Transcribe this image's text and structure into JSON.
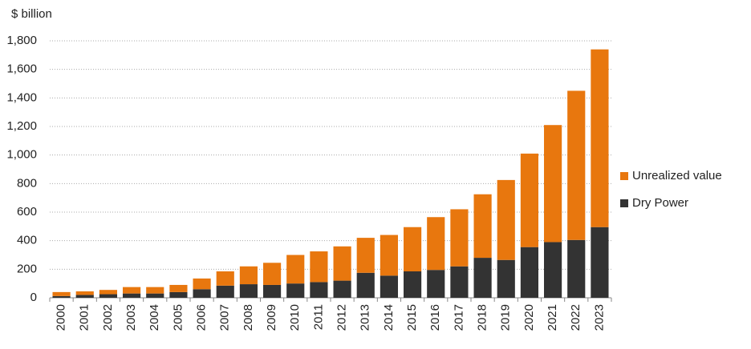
{
  "chart_data": {
    "type": "stacked-bar",
    "y_label": "$ billion",
    "categories": [
      "2000",
      "2001",
      "2002",
      "2003",
      "2004",
      "2005",
      "2006",
      "2007",
      "2008",
      "2009",
      "2010",
      "2011",
      "2012",
      "2013",
      "2014",
      "2015",
      "2016",
      "2017",
      "2018",
      "2019",
      "2020",
      "2021",
      "2022",
      "2023"
    ],
    "series": [
      {
        "name": "Dry Power",
        "color": "#333333",
        "values": [
          12,
          20,
          25,
          30,
          30,
          40,
          60,
          85,
          95,
          90,
          100,
          110,
          120,
          175,
          155,
          185,
          195,
          220,
          280,
          265,
          355,
          390,
          405,
          495
        ]
      },
      {
        "name": "Unrealized value",
        "color": "#e8770e",
        "values": [
          28,
          25,
          30,
          45,
          45,
          50,
          75,
          100,
          125,
          155,
          200,
          215,
          240,
          245,
          285,
          310,
          370,
          400,
          445,
          560,
          655,
          820,
          1045,
          1245
        ]
      }
    ],
    "ylim": [
      0,
      1800
    ],
    "yticks": [
      0,
      200,
      400,
      600,
      800,
      {
        "value": 1000,
        "label": "1,000"
      },
      {
        "value": 1200,
        "label": "1,200"
      },
      {
        "value": 1400,
        "label": "1,400"
      },
      {
        "value": 1600,
        "label": "1,600"
      },
      {
        "value": 1800,
        "label": "1,800"
      }
    ],
    "grid": true,
    "legend": "right"
  }
}
